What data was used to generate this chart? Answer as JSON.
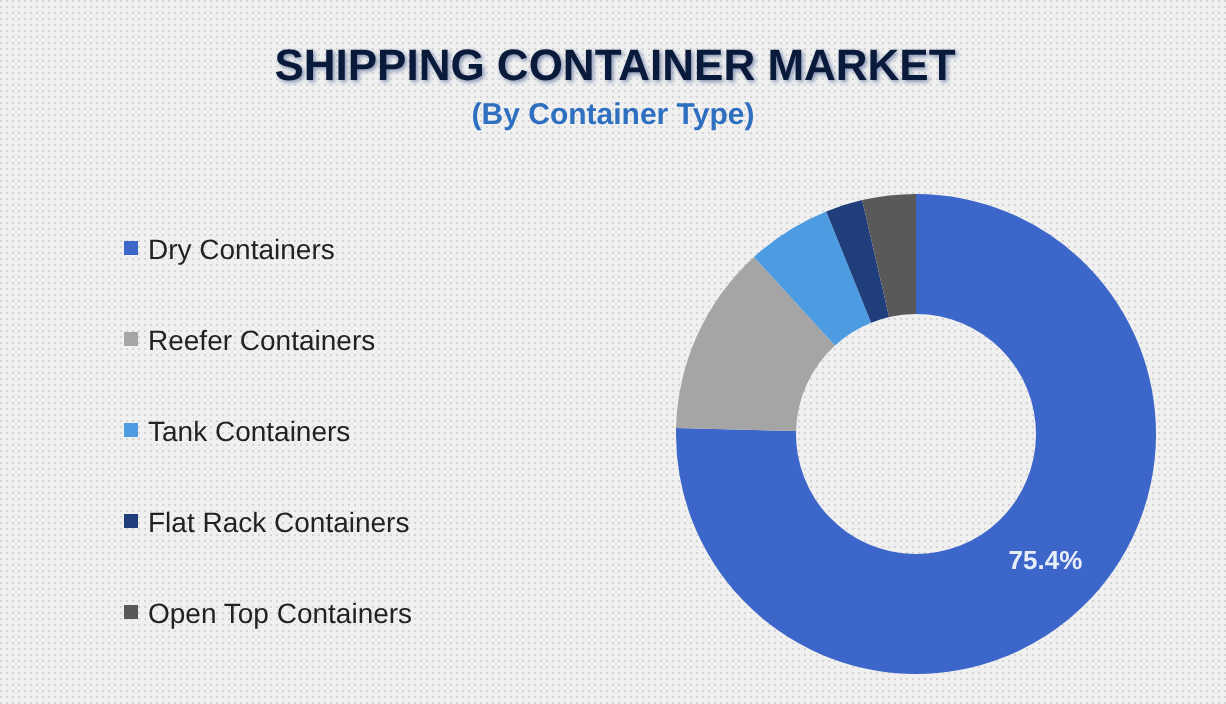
{
  "chart_data": {
    "type": "donut",
    "title": "SHIPPING CONTAINER MARKET",
    "subtitle": "(By Container Type)",
    "categories": [
      "Dry Containers",
      "Reefer Containers",
      "Tank Containers",
      "Flat Rack Containers",
      "Open Top Containers"
    ],
    "values": [
      75.4,
      12.8,
      5.7,
      2.5,
      3.6
    ],
    "colors": [
      "#3c66c9",
      "#a5a5a5",
      "#4d9be0",
      "#203d7c",
      "#595959"
    ],
    "value_labels": [
      "75.4%",
      null,
      null,
      null,
      null
    ],
    "legend": "left"
  }
}
